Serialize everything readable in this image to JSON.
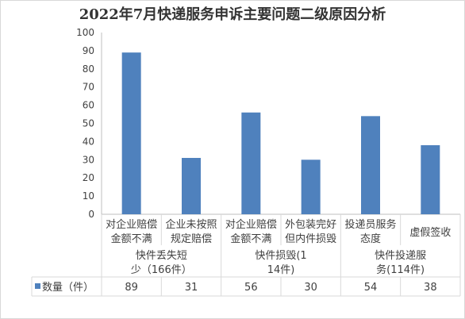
{
  "chart_data": {
    "type": "bar",
    "title": "2022年7月快递服务申诉主要问题二级原因分析",
    "categories": [
      [
        "对企业赔偿",
        "金额不满"
      ],
      [
        "企业未按照",
        "规定赔偿"
      ],
      [
        "对企业赔偿",
        "金额不满"
      ],
      [
        "外包装完好",
        "但内件损毁"
      ],
      [
        "投递员服务",
        "态度"
      ],
      [
        "虚假签收"
      ]
    ],
    "groups": [
      {
        "label": [
          "快件丢失短",
          "少（166件）"
        ],
        "span": 2
      },
      {
        "label": [
          "快件损毁(1",
          "14件)"
        ],
        "span": 2
      },
      {
        "label": [
          "快件投递服",
          "务(114件)"
        ],
        "span": 2
      }
    ],
    "series": [
      {
        "name": "数量（件）",
        "values": [
          89,
          31,
          56,
          30,
          54,
          38
        ]
      }
    ],
    "ylim": [
      0,
      100
    ],
    "yticks": [
      0,
      10,
      20,
      30,
      40,
      50,
      60,
      70,
      80,
      90,
      100
    ],
    "grid": false,
    "legend": "table-left",
    "colors": {
      "bar": "#4f81bd",
      "axis": "#bfbfbf",
      "table_border": "#d9d9d9"
    }
  }
}
